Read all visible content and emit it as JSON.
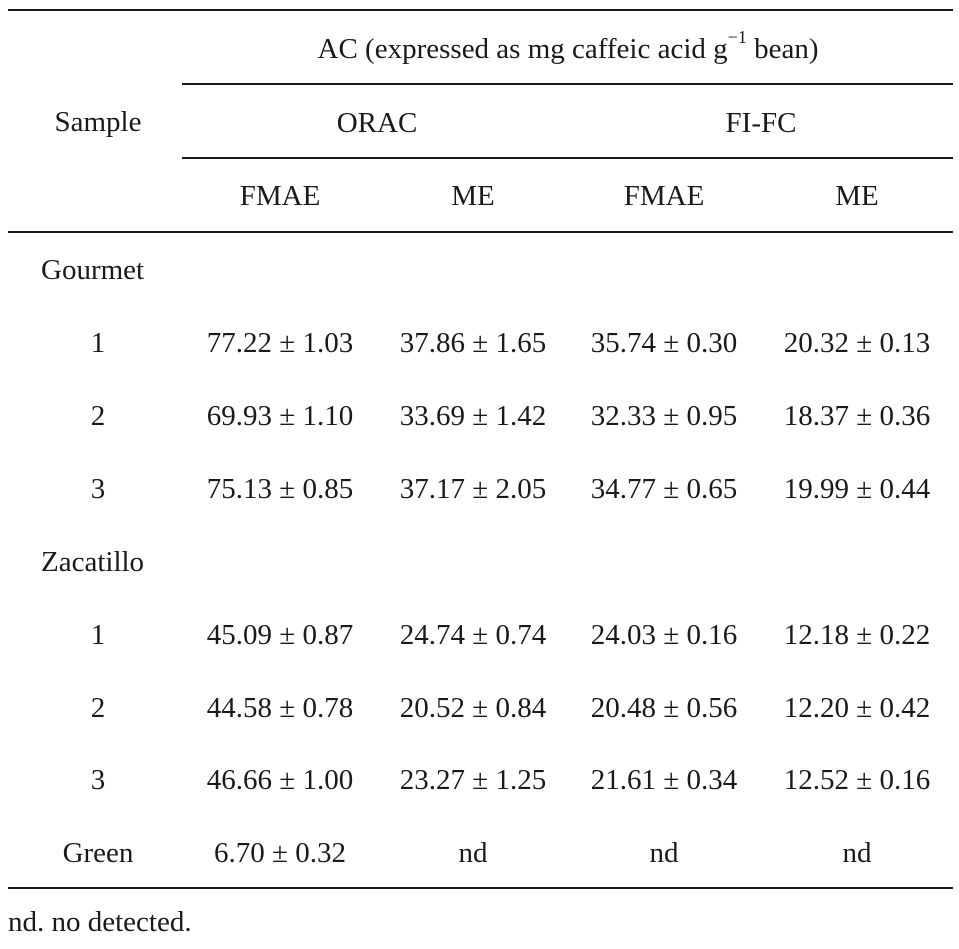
{
  "header": {
    "group": "AC (expressed as mg caffeic acid g",
    "group_sup": "−1",
    "group_tail": " bean)",
    "sample": "Sample",
    "orac": "ORAC",
    "fifc": "FI-FC",
    "cols": [
      "FMAE",
      "ME",
      "FMAE",
      "ME"
    ]
  },
  "groups": [
    {
      "name": "Gourmet",
      "rows": [
        {
          "id": "1",
          "values": [
            "77.22 ± 1.03",
            "37.86 ± 1.65",
            "35.74 ± 0.30",
            "20.32 ± 0.13"
          ]
        },
        {
          "id": "2",
          "values": [
            "69.93 ± 1.10",
            "33.69 ± 1.42",
            "32.33 ± 0.95",
            "18.37 ± 0.36"
          ]
        },
        {
          "id": "3",
          "values": [
            "75.13 ± 0.85",
            "37.17 ± 2.05",
            "34.77 ± 0.65",
            "19.99 ± 0.44"
          ]
        }
      ]
    },
    {
      "name": "Zacatillo",
      "rows": [
        {
          "id": "1",
          "values": [
            "45.09 ± 0.87",
            "24.74 ± 0.74",
            "24.03 ± 0.16",
            "12.18 ± 0.22"
          ]
        },
        {
          "id": "2",
          "values": [
            "44.58 ± 0.78",
            "20.52 ± 0.84",
            "20.48 ± 0.56",
            "12.20 ± 0.42"
          ]
        },
        {
          "id": "3",
          "values": [
            "46.66 ± 1.00",
            "23.27 ± 1.25",
            "21.61 ± 0.34",
            "12.52 ± 0.16"
          ]
        }
      ]
    }
  ],
  "green": {
    "id": "Green",
    "values": [
      "6.70 ± 0.32",
      "nd",
      "nd",
      "nd"
    ]
  },
  "footnote": "nd. no detected."
}
